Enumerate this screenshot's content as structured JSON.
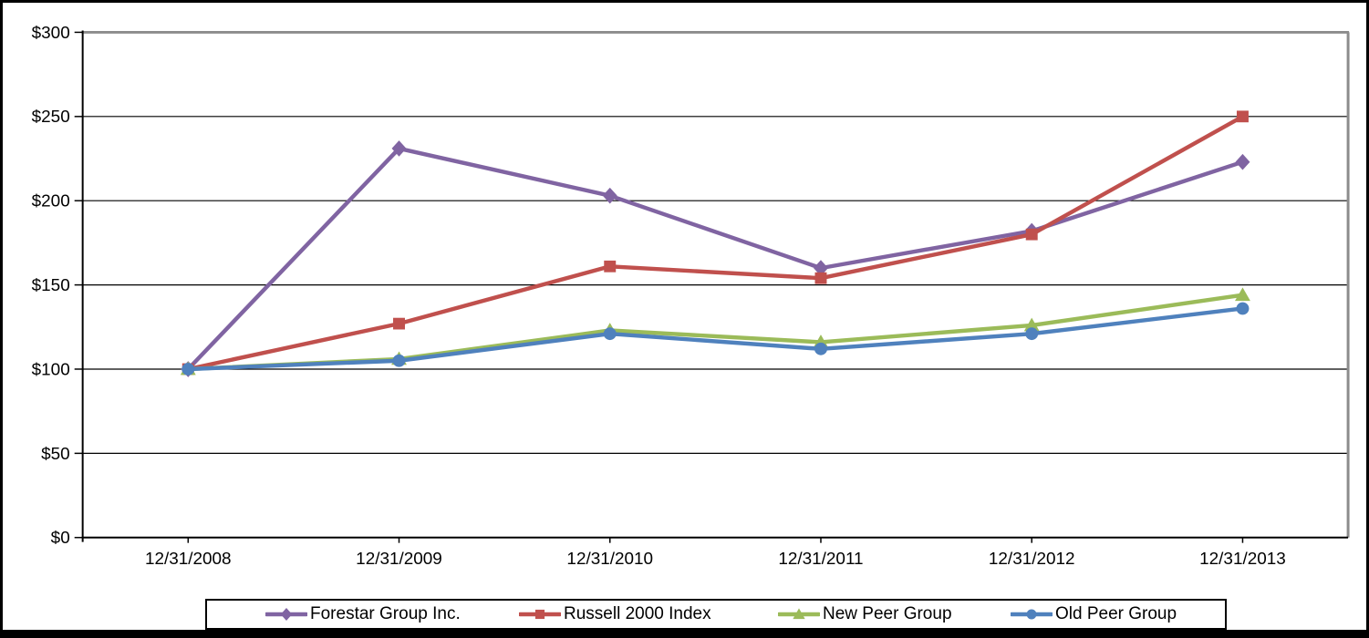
{
  "chart_data": {
    "type": "line",
    "title": "",
    "xlabel": "",
    "ylabel": "",
    "grid": true,
    "legend_position": "bottom",
    "x_axis": {
      "categories": [
        "12/31/2008",
        "12/31/2009",
        "12/31/2010",
        "12/31/2011",
        "12/31/2012",
        "12/31/2013"
      ]
    },
    "y_axis": {
      "min": 0,
      "max": 300,
      "tick_values": [
        0,
        50,
        100,
        150,
        200,
        250,
        300
      ],
      "tick_labels": [
        "$0",
        "$50",
        "$100",
        "$150",
        "$200",
        "$250",
        "$300"
      ]
    },
    "series": [
      {
        "name": "Forestar Group Inc.",
        "color": "#8064A2",
        "marker": "diamond",
        "values": [
          100,
          231,
          203,
          160,
          182,
          223
        ]
      },
      {
        "name": "Russell 2000 Index",
        "color": "#C0504D",
        "marker": "square",
        "values": [
          100,
          127,
          161,
          154,
          180,
          250
        ]
      },
      {
        "name": "New Peer Group",
        "color": "#9BBB59",
        "marker": "triangle",
        "values": [
          100,
          106,
          123,
          116,
          126,
          144
        ]
      },
      {
        "name": "Old Peer Group",
        "color": "#4F81BD",
        "marker": "circle",
        "values": [
          100,
          105,
          121,
          112,
          121,
          136
        ]
      }
    ],
    "styles": {
      "grid_color": "#000000",
      "axis_color": "#000000",
      "plot_border_color": "#8C8C8C",
      "legend_border_color": "#000000",
      "background_color": "#FFFFFF"
    }
  }
}
